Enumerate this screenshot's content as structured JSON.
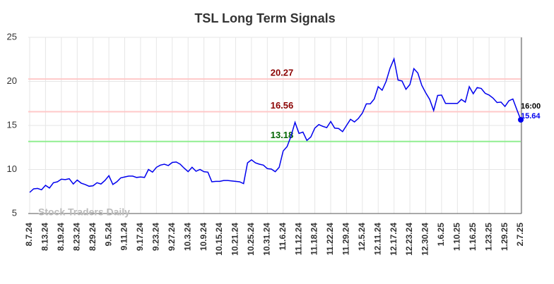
{
  "chart_data": {
    "type": "line",
    "title": "TSL Long Term Signals",
    "watermark": "Stock Traders Daily",
    "categories": [
      "8.7.24",
      null,
      null,
      null,
      "8.13.24",
      null,
      null,
      null,
      "8.19.24",
      null,
      null,
      null,
      "8.23.24",
      null,
      null,
      null,
      "8.29.24",
      null,
      null,
      null,
      "9.5.24",
      null,
      null,
      null,
      "9.11.24",
      null,
      null,
      null,
      "9.17.24",
      null,
      null,
      null,
      "9.23.24",
      null,
      null,
      null,
      "9.27.24",
      null,
      null,
      null,
      "10.3.24",
      null,
      null,
      null,
      "10.9.24",
      null,
      null,
      null,
      "10.15.24",
      null,
      null,
      null,
      "10.21.24",
      null,
      null,
      null,
      "10.25.24",
      null,
      null,
      null,
      "10.31.24",
      null,
      null,
      null,
      "11.6.24",
      null,
      null,
      null,
      "11.12.24",
      null,
      null,
      null,
      "11.18.24",
      null,
      null,
      null,
      "11.22.24",
      null,
      null,
      null,
      "11.29.24",
      null,
      null,
      null,
      "12.5.24",
      null,
      null,
      null,
      "12.11.24",
      null,
      null,
      null,
      "12.17.24",
      null,
      null,
      null,
      "12.23.24",
      null,
      null,
      null,
      "12.30.24",
      null,
      null,
      null,
      "1.6.25",
      null,
      null,
      null,
      "1.10.25",
      null,
      null,
      null,
      "1.16.25",
      null,
      null,
      null,
      "1.23.25",
      null,
      null,
      null,
      "1.29.25",
      null,
      null,
      null,
      "2.7.25"
    ],
    "values": [
      7.4,
      7.8,
      7.85,
      7.7,
      8.2,
      7.9,
      8.5,
      8.6,
      8.9,
      8.85,
      8.95,
      8.35,
      8.8,
      8.45,
      8.3,
      8.1,
      8.15,
      8.5,
      8.35,
      8.75,
      9.3,
      8.3,
      8.6,
      9.05,
      9.15,
      9.25,
      9.25,
      9.1,
      9.15,
      9.1,
      10.0,
      9.7,
      10.25,
      10.5,
      10.6,
      10.45,
      10.8,
      10.85,
      10.6,
      10.15,
      9.75,
      10.25,
      9.8,
      10.0,
      9.75,
      9.7,
      8.6,
      8.65,
      8.65,
      8.75,
      8.75,
      8.7,
      8.65,
      8.6,
      8.4,
      10.75,
      11.1,
      10.75,
      10.6,
      10.5,
      10.1,
      10.05,
      9.75,
      10.25,
      12.1,
      12.6,
      13.8,
      15.35,
      14.1,
      14.25,
      13.3,
      13.7,
      14.7,
      15.1,
      14.9,
      14.75,
      15.45,
      14.7,
      14.65,
      14.3,
      15.0,
      15.7,
      15.4,
      15.8,
      16.4,
      17.45,
      17.45,
      18.0,
      19.4,
      19.0,
      20.0,
      21.5,
      22.55,
      20.15,
      20.05,
      19.1,
      19.65,
      21.45,
      20.95,
      19.55,
      18.7,
      17.95,
      16.7,
      18.4,
      18.45,
      17.5,
      17.5,
      17.5,
      17.5,
      17.95,
      17.65,
      19.4,
      18.6,
      19.3,
      19.2,
      18.65,
      18.45,
      18.1,
      17.6,
      17.65,
      17.15,
      17.8,
      18.0,
      16.8,
      15.64
    ],
    "color": "#0000ee",
    "last_point_time": "16:00",
    "hlines": [
      {
        "value": 20.27,
        "color": "#ffc8c8",
        "label_color": "#8b0000"
      },
      {
        "value": 16.56,
        "color": "#ffc8c8",
        "label_color": "#8b0000"
      },
      {
        "value": 13.18,
        "color": "#90ee90",
        "label_color": "#006400"
      }
    ],
    "ylim": [
      5,
      25
    ],
    "yticks": [
      5,
      10,
      15,
      20,
      25
    ],
    "grid": true
  }
}
